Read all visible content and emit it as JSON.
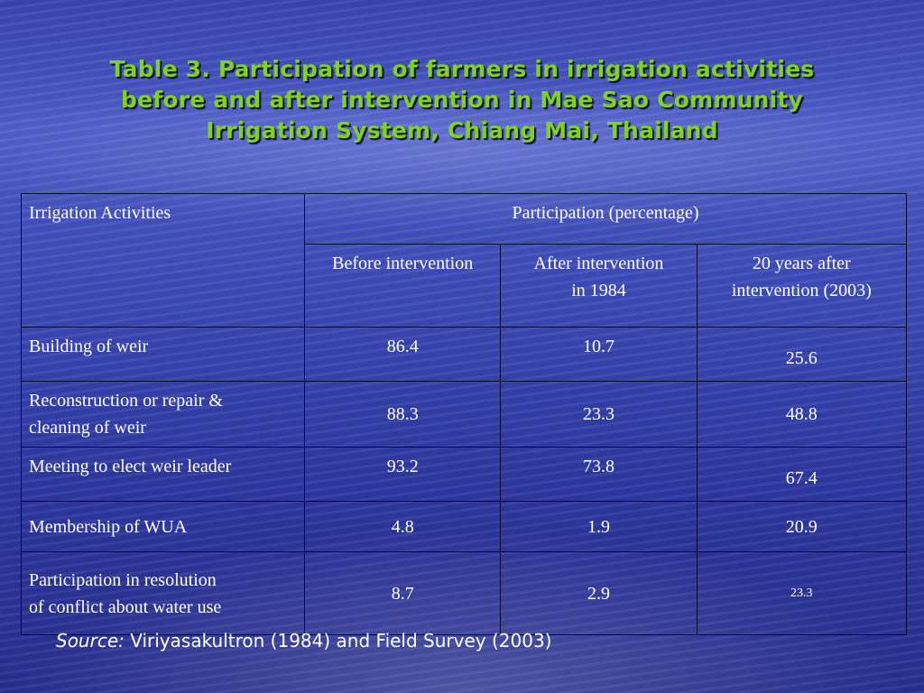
{
  "title": {
    "line1": "Table 3. Participation of farmers in irrigation activities",
    "line2": "before and after intervention in Mae Sao Community",
    "line3": "Irrigation System, Chiang Mai, Thailand"
  },
  "table": {
    "header": {
      "activities": "Irrigation Activities",
      "participation": "Participation (percentage)",
      "before": "Before intervention",
      "after_line1": "After intervention",
      "after_line2": "in 1984",
      "years_line1": "20 years after",
      "years_line2": "intervention (2003)"
    },
    "rows": [
      {
        "activity": "Building of weir",
        "activity_line2": "",
        "before": "86.4",
        "after": "10.7",
        "years20": "25.6"
      },
      {
        "activity": "Reconstruction or repair &",
        "activity_line2": "cleaning of weir",
        "before": "88.3",
        "after": "23.3",
        "years20": "48.8"
      },
      {
        "activity": "Meeting to elect weir leader",
        "activity_line2": "",
        "before": "93.2",
        "after": "73.8",
        "years20": "67.4"
      },
      {
        "activity": "Membership of WUA",
        "activity_line2": "",
        "before": "4.8",
        "after": "1.9",
        "years20": "20.9"
      },
      {
        "activity": "Participation in resolution",
        "activity_line2": "of conflict about water use",
        "before": "8.7",
        "after": "2.9",
        "years20": "23.3"
      }
    ]
  },
  "source": {
    "label": "Source:",
    "text": " Viriyasakultron (1984) and Field Survey (2003)"
  }
}
